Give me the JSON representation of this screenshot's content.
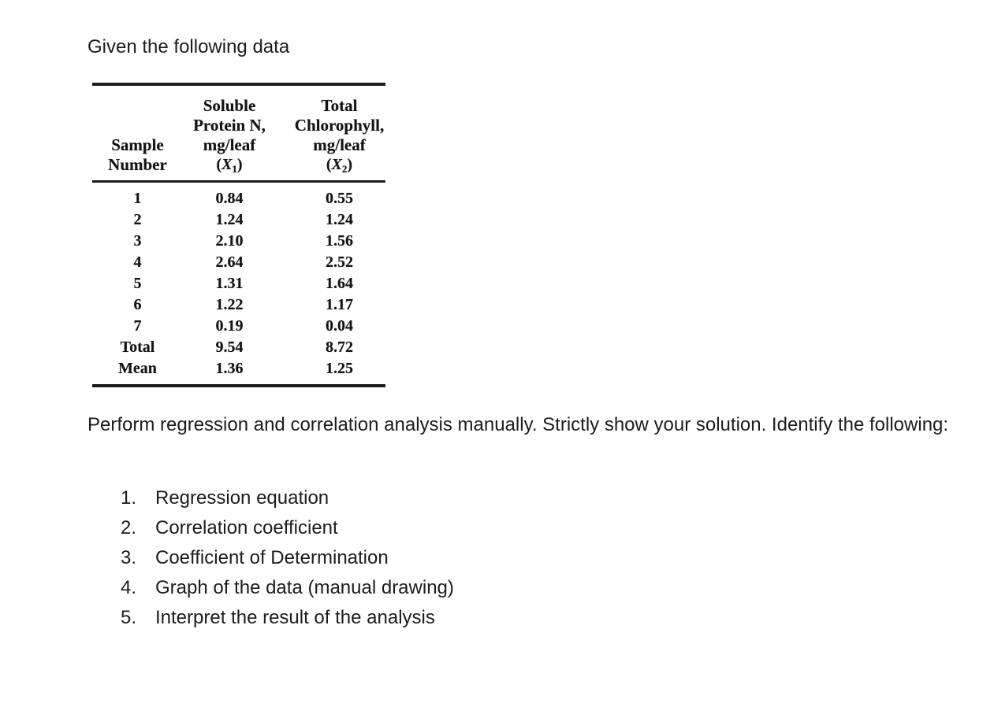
{
  "doc": {
    "title": "Given the following data",
    "instructions": "Perform regression and correlation analysis manually. Strictly show your solution. Identify the following:",
    "list": [
      {
        "num": "1.",
        "text": "Regression equation"
      },
      {
        "num": "2.",
        "text": "Correlation coefficient"
      },
      {
        "num": "3.",
        "text": "Coefficient of Determination"
      },
      {
        "num": "4.",
        "text": "Graph of the data (manual drawing)"
      },
      {
        "num": "5.",
        "text": "Interpret the result of the analysis"
      }
    ]
  },
  "table": {
    "headers": {
      "sample": [
        "Sample",
        "Number"
      ],
      "x1_lines": [
        "Soluble",
        "Protein N,",
        "mg/leaf"
      ],
      "x1_sym": {
        "open": "(",
        "var": "X",
        "sub": "1",
        "close": ")"
      },
      "x2_lines": [
        "Total",
        "Chlorophyll,",
        "mg/leaf"
      ],
      "x2_sym": {
        "open": "(",
        "var": "X",
        "sub": "2",
        "close": ")"
      }
    },
    "rows": [
      {
        "label": "1",
        "x1": "0.84",
        "x2": "0.55"
      },
      {
        "label": "2",
        "x1": "1.24",
        "x2": "1.24"
      },
      {
        "label": "3",
        "x1": "2.10",
        "x2": "1.56"
      },
      {
        "label": "4",
        "x1": "2.64",
        "x2": "2.52"
      },
      {
        "label": "5",
        "x1": "1.31",
        "x2": "1.64"
      },
      {
        "label": "6",
        "x1": "1.22",
        "x2": "1.17"
      },
      {
        "label": "7",
        "x1": "0.19",
        "x2": "0.04"
      },
      {
        "label": "Total",
        "x1": "9.54",
        "x2": "8.72"
      },
      {
        "label": "Mean",
        "x1": "1.36",
        "x2": "1.25"
      }
    ]
  }
}
